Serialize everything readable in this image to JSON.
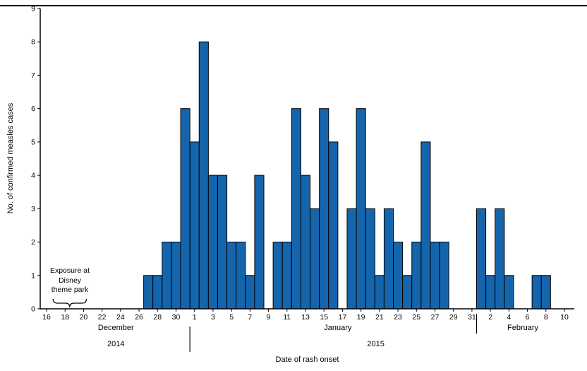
{
  "axis_titles": {
    "x": "Date of rash onset",
    "y": "No. of confirmed measles cases"
  },
  "annotation": {
    "lines": [
      "Exposure at",
      "Disney",
      "theme park"
    ]
  },
  "chart_data": {
    "type": "bar",
    "title": "",
    "xlabel": "Date of rash onset",
    "ylabel": "No. of confirmed measles cases",
    "ylim": [
      0,
      9
    ],
    "y_ticks": [
      0,
      1,
      2,
      3,
      4,
      5,
      6,
      7,
      8,
      9
    ],
    "x_axis_start": "December 16",
    "x_axis_end": "February 10",
    "x_tick_day_step": 2,
    "x_tick_labels": [
      "16",
      "18",
      "20",
      "22",
      "24",
      "26",
      "28",
      "30",
      "1",
      "3",
      "5",
      "7",
      "9",
      "11",
      "13",
      "15",
      "17",
      "19",
      "21",
      "23",
      "25",
      "27",
      "29",
      "31",
      "2",
      "4",
      "6",
      "8",
      "10"
    ],
    "months": [
      {
        "label": "December",
        "year": "2014",
        "label_x_index": 7.5,
        "year_x_index": 7.5
      },
      {
        "label": "January",
        "year": "2015",
        "label_x_index": 31.5,
        "year_x_index": 35.6
      },
      {
        "label": "February",
        "year": "",
        "label_x_index": 51.5,
        "year_x_index": 51.5
      }
    ],
    "month_dividers": [
      {
        "x_index": 15.5
      },
      {
        "x_index": 46.5
      }
    ],
    "annotation_brace": {
      "start_index": 0.7,
      "end_index": 4.3,
      "span_dates": "December 17-20"
    },
    "colors": {
      "bar_fill": "#1565ad",
      "bar_stroke": "#000000",
      "axis": "#000000"
    },
    "grid": false,
    "legend": "none",
    "bars": [
      {
        "label": "Dec 27",
        "day_index": 11,
        "value": 1
      },
      {
        "label": "Dec 28",
        "day_index": 12,
        "value": 1
      },
      {
        "label": "Dec 29",
        "day_index": 13,
        "value": 2
      },
      {
        "label": "Dec 30",
        "day_index": 14,
        "value": 2
      },
      {
        "label": "Dec 31",
        "day_index": 15,
        "value": 6
      },
      {
        "label": "Jan 1",
        "day_index": 16,
        "value": 5
      },
      {
        "label": "Jan 2",
        "day_index": 17,
        "value": 8
      },
      {
        "label": "Jan 3",
        "day_index": 18,
        "value": 4
      },
      {
        "label": "Jan 4",
        "day_index": 19,
        "value": 4
      },
      {
        "label": "Jan 5",
        "day_index": 20,
        "value": 2
      },
      {
        "label": "Jan 6",
        "day_index": 21,
        "value": 2
      },
      {
        "label": "Jan 7",
        "day_index": 22,
        "value": 1
      },
      {
        "label": "Jan 8",
        "day_index": 23,
        "value": 4
      },
      {
        "label": "Jan 10",
        "day_index": 25,
        "value": 2
      },
      {
        "label": "Jan 11",
        "day_index": 26,
        "value": 2
      },
      {
        "label": "Jan 12",
        "day_index": 27,
        "value": 6
      },
      {
        "label": "Jan 13",
        "day_index": 28,
        "value": 4
      },
      {
        "label": "Jan 14",
        "day_index": 29,
        "value": 3
      },
      {
        "label": "Jan 15",
        "day_index": 30,
        "value": 6
      },
      {
        "label": "Jan 16",
        "day_index": 31,
        "value": 5
      },
      {
        "label": "Jan 18",
        "day_index": 33,
        "value": 3
      },
      {
        "label": "Jan 19",
        "day_index": 34,
        "value": 6
      },
      {
        "label": "Jan 20",
        "day_index": 35,
        "value": 3
      },
      {
        "label": "Jan 21",
        "day_index": 36,
        "value": 1
      },
      {
        "label": "Jan 22",
        "day_index": 37,
        "value": 3
      },
      {
        "label": "Jan 23",
        "day_index": 38,
        "value": 2
      },
      {
        "label": "Jan 24",
        "day_index": 39,
        "value": 1
      },
      {
        "label": "Jan 25",
        "day_index": 40,
        "value": 2
      },
      {
        "label": "Jan 26",
        "day_index": 41,
        "value": 5
      },
      {
        "label": "Jan 27",
        "day_index": 42,
        "value": 2
      },
      {
        "label": "Jan 28",
        "day_index": 43,
        "value": 2
      },
      {
        "label": "Feb 1",
        "day_index": 47,
        "value": 3
      },
      {
        "label": "Feb 2",
        "day_index": 48,
        "value": 1
      },
      {
        "label": "Feb 3",
        "day_index": 49,
        "value": 3
      },
      {
        "label": "Feb 4",
        "day_index": 50,
        "value": 1
      },
      {
        "label": "Feb 7",
        "day_index": 53,
        "value": 1
      },
      {
        "label": "Feb 8",
        "day_index": 54,
        "value": 1
      }
    ]
  }
}
